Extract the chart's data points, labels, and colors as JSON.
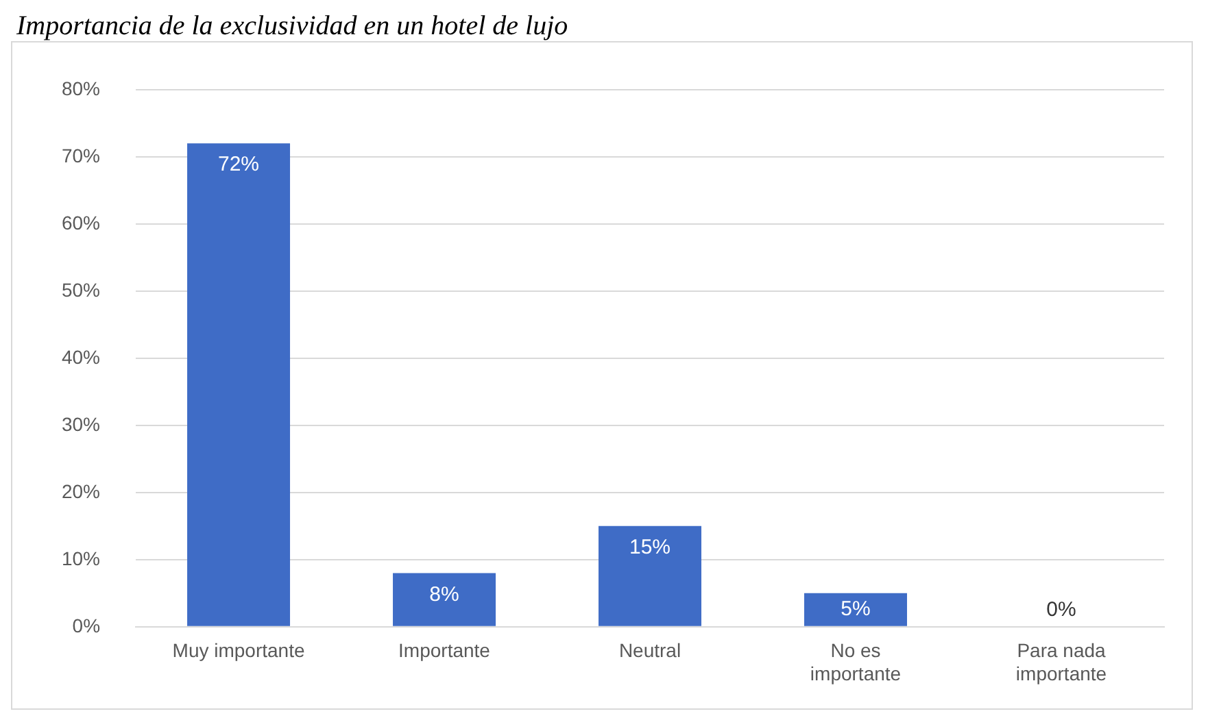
{
  "chart_data": {
    "type": "bar",
    "title": "Importancia de la exclusividad en un hotel de lujo",
    "categories": [
      "Muy importante",
      "Importante",
      "Neutral",
      "No es importante",
      "Para nada importante"
    ],
    "values": [
      72,
      8,
      15,
      5,
      0
    ],
    "color": "#3f6cc6",
    "value_labels": [
      "72%",
      "8%",
      "15%",
      "5%",
      "0%"
    ],
    "ylim": [
      0,
      80
    ],
    "yticks": [
      {
        "value": 0,
        "label": "0%"
      },
      {
        "value": 10,
        "label": "10%"
      },
      {
        "value": 20,
        "label": "20%"
      },
      {
        "value": 30,
        "label": "30%"
      },
      {
        "value": 40,
        "label": "40%"
      },
      {
        "value": 50,
        "label": "50%"
      },
      {
        "value": 60,
        "label": "60%"
      },
      {
        "value": 70,
        "label": "70%"
      },
      {
        "value": 80,
        "label": "80%"
      }
    ],
    "grid": "y",
    "legend": false
  }
}
